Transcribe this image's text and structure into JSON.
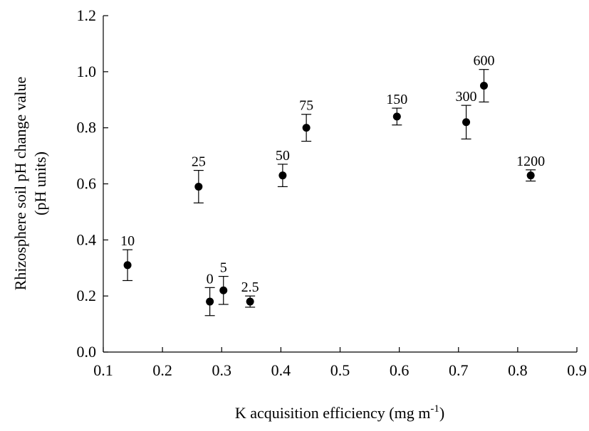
{
  "chart_data": {
    "type": "scatter",
    "xlabel": "K acquisition efficiency (mg m",
    "xlabel_sup": "-1",
    "xlabel_suffix": ")",
    "ylabel": "Rhizosphere soil pH change value",
    "ylabel_units": "(pH units)",
    "xlim": [
      0.1,
      0.9
    ],
    "ylim": [
      0.0,
      1.2
    ],
    "x_ticks": [
      "0.1",
      "0.2",
      "0.3",
      "0.4",
      "0.5",
      "0.6",
      "0.7",
      "0.8",
      "0.9"
    ],
    "y_ticks": [
      "0.0",
      "0.2",
      "0.4",
      "0.6",
      "0.8",
      "1.0",
      "1.2"
    ],
    "grid": false,
    "points": [
      {
        "label": "10",
        "x": 0.141,
        "y": 0.31,
        "err": 0.055
      },
      {
        "label": "25",
        "x": 0.261,
        "y": 0.59,
        "err": 0.058
      },
      {
        "label": "0",
        "x": 0.28,
        "y": 0.18,
        "err": 0.05
      },
      {
        "label": "5",
        "x": 0.303,
        "y": 0.22,
        "err": 0.05
      },
      {
        "label": "2.5",
        "x": 0.348,
        "y": 0.18,
        "err": 0.02
      },
      {
        "label": "50",
        "x": 0.403,
        "y": 0.63,
        "err": 0.04
      },
      {
        "label": "75",
        "x": 0.443,
        "y": 0.8,
        "err": 0.048
      },
      {
        "label": "150",
        "x": 0.596,
        "y": 0.84,
        "err": 0.03
      },
      {
        "label": "300",
        "x": 0.713,
        "y": 0.82,
        "err": 0.06
      },
      {
        "label": "600",
        "x": 0.743,
        "y": 0.95,
        "err": 0.058
      },
      {
        "label": "1200",
        "x": 0.822,
        "y": 0.63,
        "err": 0.02
      }
    ]
  }
}
